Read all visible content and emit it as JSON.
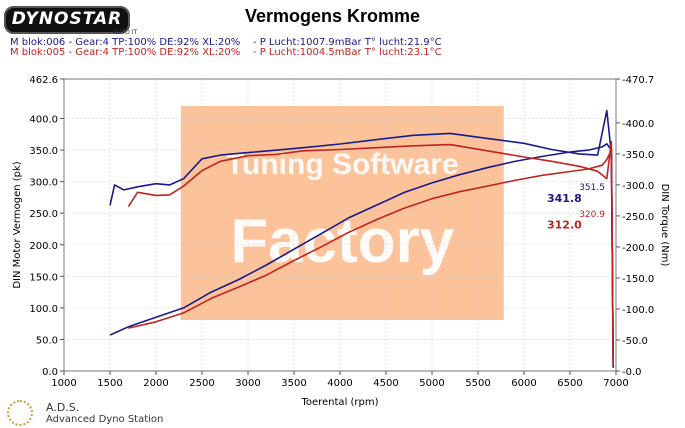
{
  "header": {
    "logo_text": "DYNOSTAR",
    "logo_sub": "AUTO IT",
    "title": "Vermogens Kromme",
    "runs": [
      {
        "label": "M blok:006 - Gear:4 TP:100% DE:92% XL:20%    - P Lucht:1007.9mBar T° lucht:21.9°C",
        "color": "#1a1a8a"
      },
      {
        "label": "M blok:005 - Gear:4 TP:100% DE:92% XL:20%    - P Lucht:1004.5mBar T° lucht:23.1°C",
        "color": "#c0241f"
      }
    ]
  },
  "watermark": {
    "line1": "Tuning Software",
    "line2": "Factory",
    "color": "#fbb98a"
  },
  "footer": {
    "name": "A.D.S.",
    "subtitle": "Advanced Dyno Station"
  },
  "chart_data": {
    "type": "line",
    "xlabel": "Toerental (rpm)",
    "ylabel": "DIN Motor Vermogen (pk)",
    "y2label": "DIN Torque (Nm)",
    "xlim": [
      1000,
      7000
    ],
    "ylim": [
      0,
      462.6
    ],
    "y2lim": [
      0,
      470.7
    ],
    "x_ticks": [
      "1000",
      "1500",
      "2000",
      "2500",
      "3000",
      "3500",
      "4000",
      "4500",
      "5000",
      "5500",
      "6000",
      "6500",
      "7000"
    ],
    "y_ticks": [
      "0.0",
      "50.0",
      "100.0",
      "150.0",
      "200.0",
      "250.0",
      "300.0",
      "350.0",
      "400.0",
      "462.6"
    ],
    "y2_ticks": [
      "-0.0",
      "-50.0",
      "-100.0",
      "-150.0",
      "-200.0",
      "-250.0",
      "-300.0",
      "-350.0",
      "-400.0",
      "-470.7"
    ],
    "grid": true,
    "colors": {
      "run1": "#1a1a8a",
      "run2": "#c0241f",
      "grid": "#d0d0d0"
    },
    "series": [
      {
        "axis": "left",
        "color": "#1a1a8a",
        "x": [
          1500,
          1700,
          2000,
          2300,
          2600,
          2900,
          3200,
          3500,
          3800,
          4100,
          4400,
          4700,
          5000,
          5300,
          5600,
          5900,
          6200,
          6500,
          6700,
          6850,
          6900,
          6950,
          6970
        ],
        "values": [
          57,
          70,
          85,
          100,
          125,
          145,
          168,
          193,
          218,
          243,
          263,
          283,
          298,
          311,
          322,
          332,
          340,
          347,
          350,
          355,
          360,
          350,
          5
        ]
      },
      {
        "axis": "left",
        "color": "#c0241f",
        "x": [
          1700,
          2000,
          2300,
          2600,
          2900,
          3200,
          3500,
          3800,
          4100,
          4400,
          4700,
          5000,
          5300,
          5600,
          5900,
          6200,
          6500,
          6700,
          6850,
          6900,
          6950,
          6970
        ],
        "values": [
          68,
          78,
          92,
          115,
          133,
          152,
          175,
          197,
          220,
          240,
          258,
          273,
          284,
          293,
          302,
          310,
          316,
          320,
          326,
          335,
          350,
          10
        ]
      },
      {
        "axis": "right",
        "color": "#1a1a8a",
        "x": [
          1500,
          1550,
          1650,
          1800,
          2000,
          2150,
          2300,
          2500,
          2700,
          3000,
          3300,
          3600,
          4000,
          4400,
          4800,
          5200,
          5600,
          6000,
          6300,
          6600,
          6800,
          6900,
          6950,
          6970
        ],
        "values": [
          267,
          300,
          292,
          297,
          302,
          300,
          310,
          342,
          348,
          352,
          356,
          360,
          366,
          373,
          380,
          383,
          375,
          367,
          357,
          350,
          348,
          420,
          350,
          20
        ]
      },
      {
        "axis": "right",
        "color": "#c0241f",
        "x": [
          1700,
          1800,
          2000,
          2150,
          2300,
          2500,
          2700,
          3000,
          3300,
          3600,
          4000,
          4400,
          4800,
          5200,
          5600,
          6000,
          6300,
          6600,
          6800,
          6900,
          6950,
          6970
        ],
        "values": [
          265,
          288,
          283,
          284,
          298,
          323,
          338,
          347,
          349,
          355,
          357,
          360,
          363,
          365,
          355,
          345,
          338,
          330,
          322,
          310,
          370,
          10
        ]
      }
    ],
    "annotations": [
      {
        "text": "341.8",
        "x": 6250,
        "y": 268,
        "axis": "left",
        "color": "#1a1a8a"
      },
      {
        "text": "312.0",
        "x": 6250,
        "y": 226,
        "axis": "left",
        "color": "#c0241f"
      },
      {
        "text": "351.5",
        "x": 6600,
        "y": 292,
        "axis": "right",
        "color": "#1a1a8a"
      },
      {
        "text": "320.9",
        "x": 6600,
        "y": 248,
        "axis": "right",
        "color": "#c0241f"
      }
    ]
  }
}
